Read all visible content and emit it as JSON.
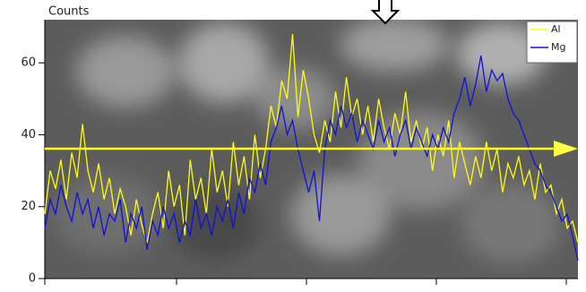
{
  "chart_data": {
    "type": "line",
    "ylabel": "Counts",
    "ylim": [
      0,
      72
    ],
    "yticks": [
      0,
      20,
      40,
      60
    ],
    "grid": false,
    "legend": "upper right",
    "series": [
      {
        "name": "Al",
        "color": "#ffff00",
        "values": [
          18,
          30,
          25,
          33,
          22,
          35,
          28,
          43,
          30,
          24,
          32,
          22,
          28,
          18,
          25,
          20,
          12,
          22,
          15,
          10,
          18,
          24,
          14,
          30,
          20,
          26,
          12,
          33,
          22,
          28,
          18,
          36,
          24,
          30,
          20,
          38,
          26,
          34,
          22,
          40,
          28,
          36,
          48,
          42,
          55,
          50,
          68,
          45,
          58,
          50,
          40,
          35,
          44,
          38,
          52,
          42,
          56,
          45,
          50,
          40,
          48,
          38,
          50,
          42,
          36,
          46,
          40,
          52,
          38,
          44,
          36,
          42,
          30,
          40,
          34,
          44,
          28,
          38,
          32,
          26,
          34,
          28,
          38,
          30,
          36,
          24,
          32,
          28,
          34,
          26,
          30,
          22,
          32,
          24,
          26,
          18,
          22,
          14,
          16,
          10
        ]
      },
      {
        "name": "Mg",
        "color": "#1010e0",
        "values": [
          14,
          22,
          18,
          26,
          20,
          16,
          24,
          18,
          22,
          14,
          20,
          12,
          18,
          16,
          22,
          10,
          18,
          14,
          20,
          8,
          16,
          12,
          20,
          14,
          18,
          10,
          16,
          12,
          22,
          14,
          18,
          12,
          20,
          16,
          22,
          14,
          24,
          18,
          28,
          24,
          32,
          26,
          38,
          42,
          48,
          40,
          44,
          36,
          30,
          24,
          30,
          16,
          36,
          44,
          40,
          48,
          42,
          46,
          38,
          44,
          40,
          36,
          44,
          38,
          42,
          34,
          40,
          44,
          36,
          42,
          38,
          34,
          40,
          36,
          42,
          38,
          46,
          50,
          56,
          48,
          54,
          62,
          52,
          58,
          55,
          57,
          50,
          46,
          44,
          40,
          36,
          32,
          30,
          26,
          24,
          20,
          16,
          18,
          12,
          5
        ]
      }
    ]
  }
}
